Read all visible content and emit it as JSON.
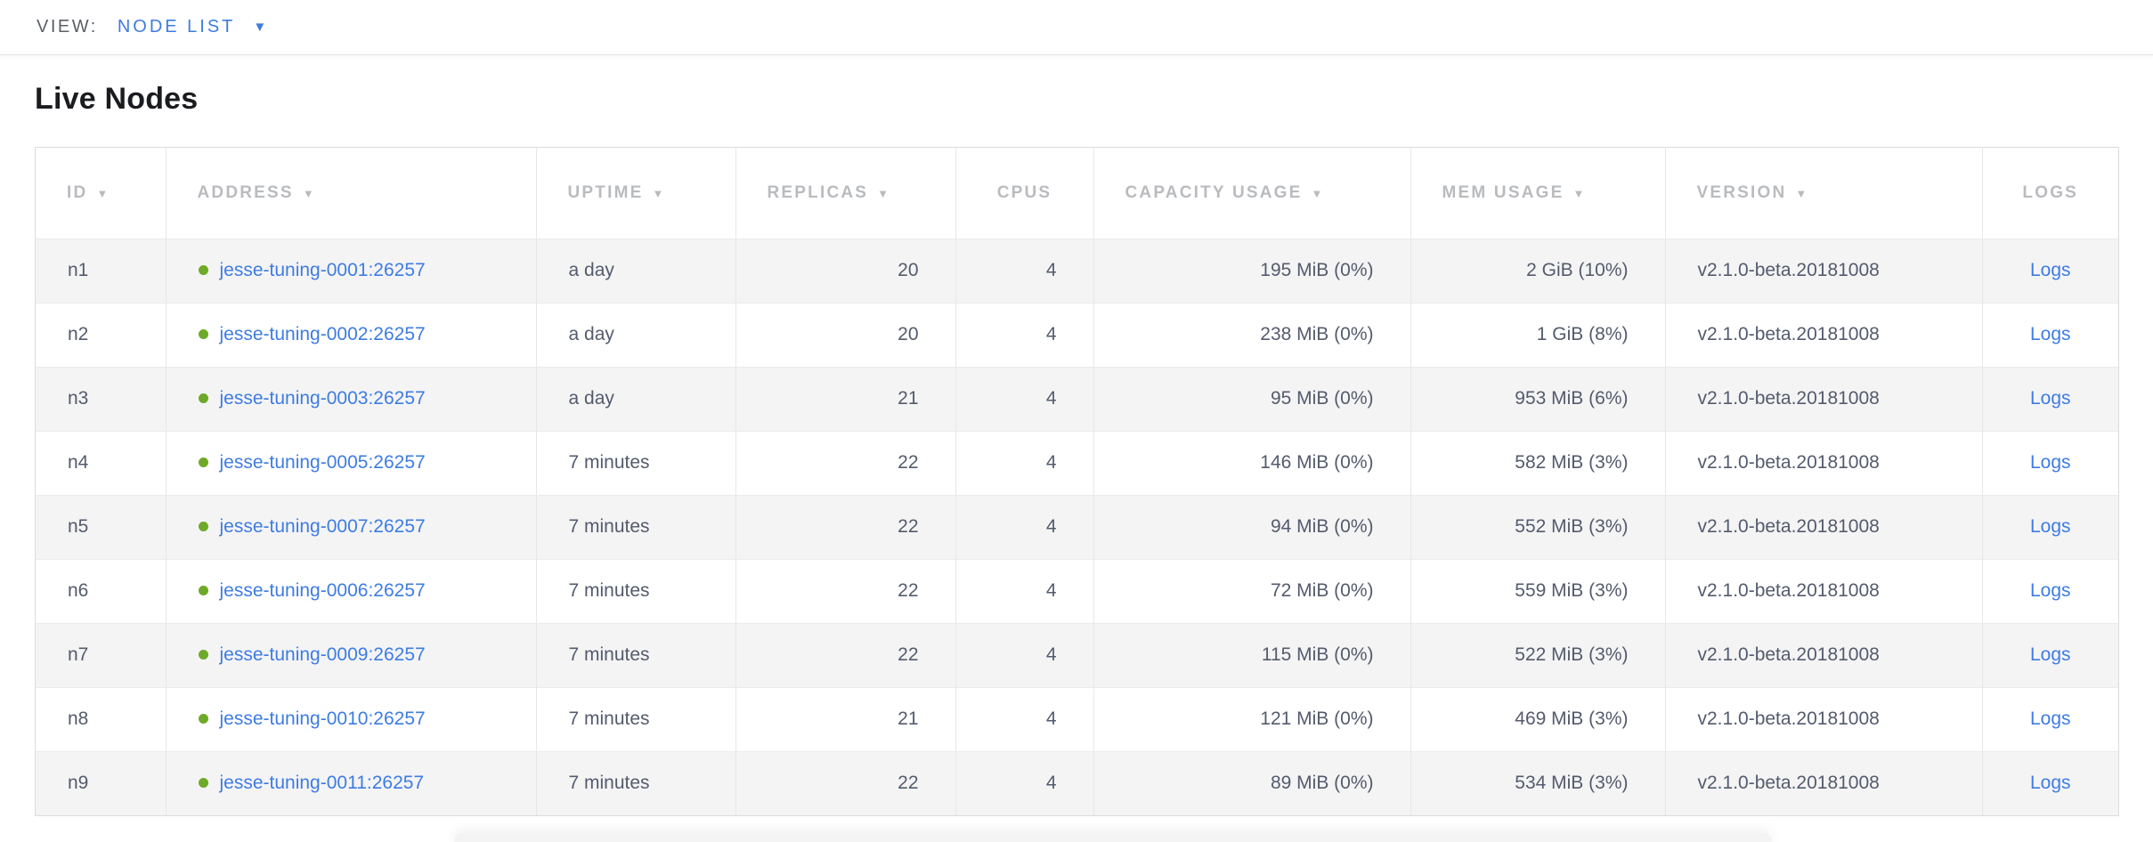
{
  "view_bar": {
    "label": "VIEW:",
    "selected": "NODE LIST"
  },
  "page": {
    "title": "Live Nodes"
  },
  "icons": {
    "sort_desc": "▼",
    "caret_down": "▼"
  },
  "table": {
    "columns": [
      {
        "label": "ID",
        "sortable": true
      },
      {
        "label": "ADDRESS",
        "sortable": true
      },
      {
        "label": "UPTIME",
        "sortable": true
      },
      {
        "label": "REPLICAS",
        "sortable": true
      },
      {
        "label": "CPUS",
        "sortable": false
      },
      {
        "label": "CAPACITY USAGE",
        "sortable": true
      },
      {
        "label": "MEM USAGE",
        "sortable": true
      },
      {
        "label": "VERSION",
        "sortable": true
      },
      {
        "label": "LOGS",
        "sortable": false
      }
    ],
    "rows": [
      {
        "id": "n1",
        "address": "jesse-tuning-0001:26257",
        "uptime": "a day",
        "replicas": "20",
        "cpus": "4",
        "capacity": "195 MiB (0%)",
        "mem": "2 GiB (10%)",
        "version": "v2.1.0-beta.20181008",
        "logs": "Logs"
      },
      {
        "id": "n2",
        "address": "jesse-tuning-0002:26257",
        "uptime": "a day",
        "replicas": "20",
        "cpus": "4",
        "capacity": "238 MiB (0%)",
        "mem": "1 GiB (8%)",
        "version": "v2.1.0-beta.20181008",
        "logs": "Logs"
      },
      {
        "id": "n3",
        "address": "jesse-tuning-0003:26257",
        "uptime": "a day",
        "replicas": "21",
        "cpus": "4",
        "capacity": "95 MiB (0%)",
        "mem": "953 MiB (6%)",
        "version": "v2.1.0-beta.20181008",
        "logs": "Logs"
      },
      {
        "id": "n4",
        "address": "jesse-tuning-0005:26257",
        "uptime": "7 minutes",
        "replicas": "22",
        "cpus": "4",
        "capacity": "146 MiB (0%)",
        "mem": "582 MiB (3%)",
        "version": "v2.1.0-beta.20181008",
        "logs": "Logs"
      },
      {
        "id": "n5",
        "address": "jesse-tuning-0007:26257",
        "uptime": "7 minutes",
        "replicas": "22",
        "cpus": "4",
        "capacity": "94 MiB (0%)",
        "mem": "552 MiB (3%)",
        "version": "v2.1.0-beta.20181008",
        "logs": "Logs"
      },
      {
        "id": "n6",
        "address": "jesse-tuning-0006:26257",
        "uptime": "7 minutes",
        "replicas": "22",
        "cpus": "4",
        "capacity": "72 MiB (0%)",
        "mem": "559 MiB (3%)",
        "version": "v2.1.0-beta.20181008",
        "logs": "Logs"
      },
      {
        "id": "n7",
        "address": "jesse-tuning-0009:26257",
        "uptime": "7 minutes",
        "replicas": "22",
        "cpus": "4",
        "capacity": "115 MiB (0%)",
        "mem": "522 MiB (3%)",
        "version": "v2.1.0-beta.20181008",
        "logs": "Logs"
      },
      {
        "id": "n8",
        "address": "jesse-tuning-0010:26257",
        "uptime": "7 minutes",
        "replicas": "21",
        "cpus": "4",
        "capacity": "121 MiB (0%)",
        "mem": "469 MiB (3%)",
        "version": "v2.1.0-beta.20181008",
        "logs": "Logs"
      },
      {
        "id": "n9",
        "address": "jesse-tuning-0011:26257",
        "uptime": "7 minutes",
        "replicas": "22",
        "cpus": "4",
        "capacity": "89 MiB (0%)",
        "mem": "534 MiB (3%)",
        "version": "v2.1.0-beta.20181008",
        "logs": "Logs"
      }
    ]
  },
  "colors": {
    "link_blue": "#3e7ce2",
    "live_green": "#6eaa28",
    "header_gray": "#b9bbbe",
    "text_slate": "#545b6d",
    "heading_black": "#1b1c1f",
    "view_label_gray": "#5c6066",
    "border_light": "#e7e7e8",
    "row_alt_bg": "#f4f4f5"
  }
}
